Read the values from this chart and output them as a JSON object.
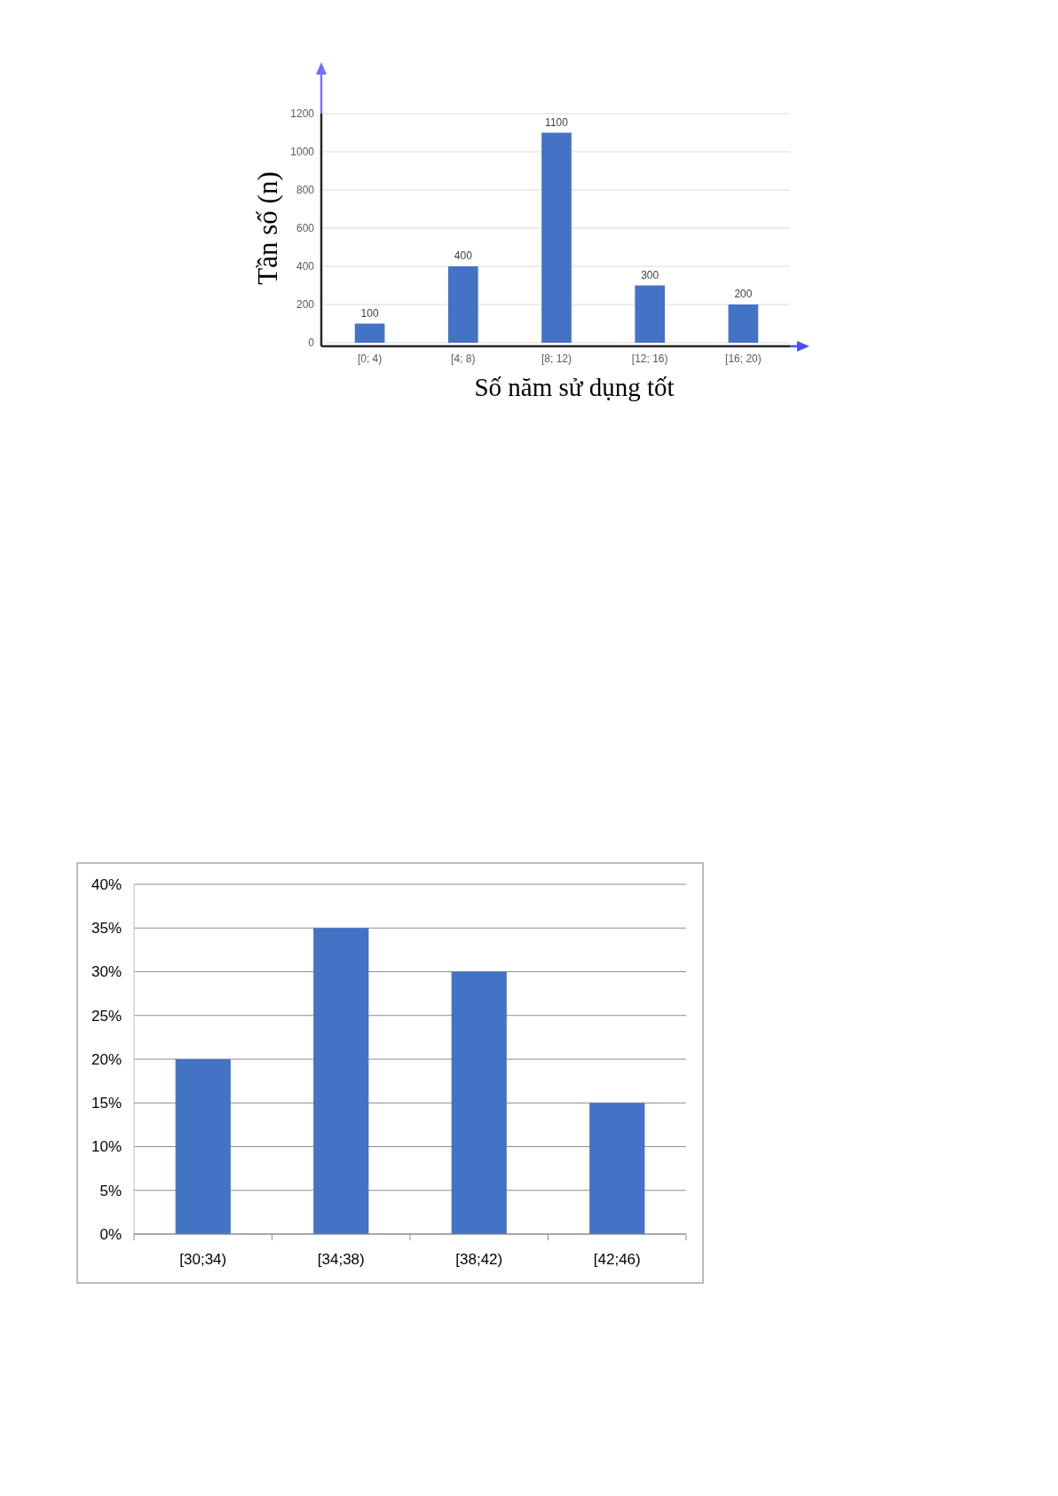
{
  "chart_data": [
    {
      "type": "bar",
      "xlabel": "Số năm sử dụng tốt",
      "ylabel": "Tần số (n)",
      "categories": [
        "[0; 4)",
        "[4; 8)",
        "[8; 12)",
        "[12; 16)",
        "[16; 20)"
      ],
      "values": [
        100,
        400,
        1100,
        300,
        200
      ],
      "color": "#4472c4",
      "ylim": [
        0,
        1200
      ],
      "yticks": [
        0,
        200,
        400,
        600,
        800,
        1000,
        1200
      ],
      "grid": "y",
      "data_labels": true
    },
    {
      "type": "bar",
      "categories": [
        "[30;34)",
        "[34;38)",
        "[38;42)",
        "[42;46)"
      ],
      "values": [
        20,
        35,
        30,
        15
      ],
      "color": "#4472c4",
      "ylim": [
        0,
        40
      ],
      "yticks": [
        {
          "value": 0,
          "label": "0%"
        },
        {
          "value": 5,
          "label": "5%"
        },
        {
          "value": 10,
          "label": "10%"
        },
        {
          "value": 15,
          "label": "15%"
        },
        {
          "value": 20,
          "label": "20%"
        },
        {
          "value": 25,
          "label": "25%"
        },
        {
          "value": 30,
          "label": "30%"
        },
        {
          "value": 35,
          "label": "35%"
        },
        {
          "value": 40,
          "label": "40%"
        }
      ],
      "grid": "y"
    }
  ]
}
